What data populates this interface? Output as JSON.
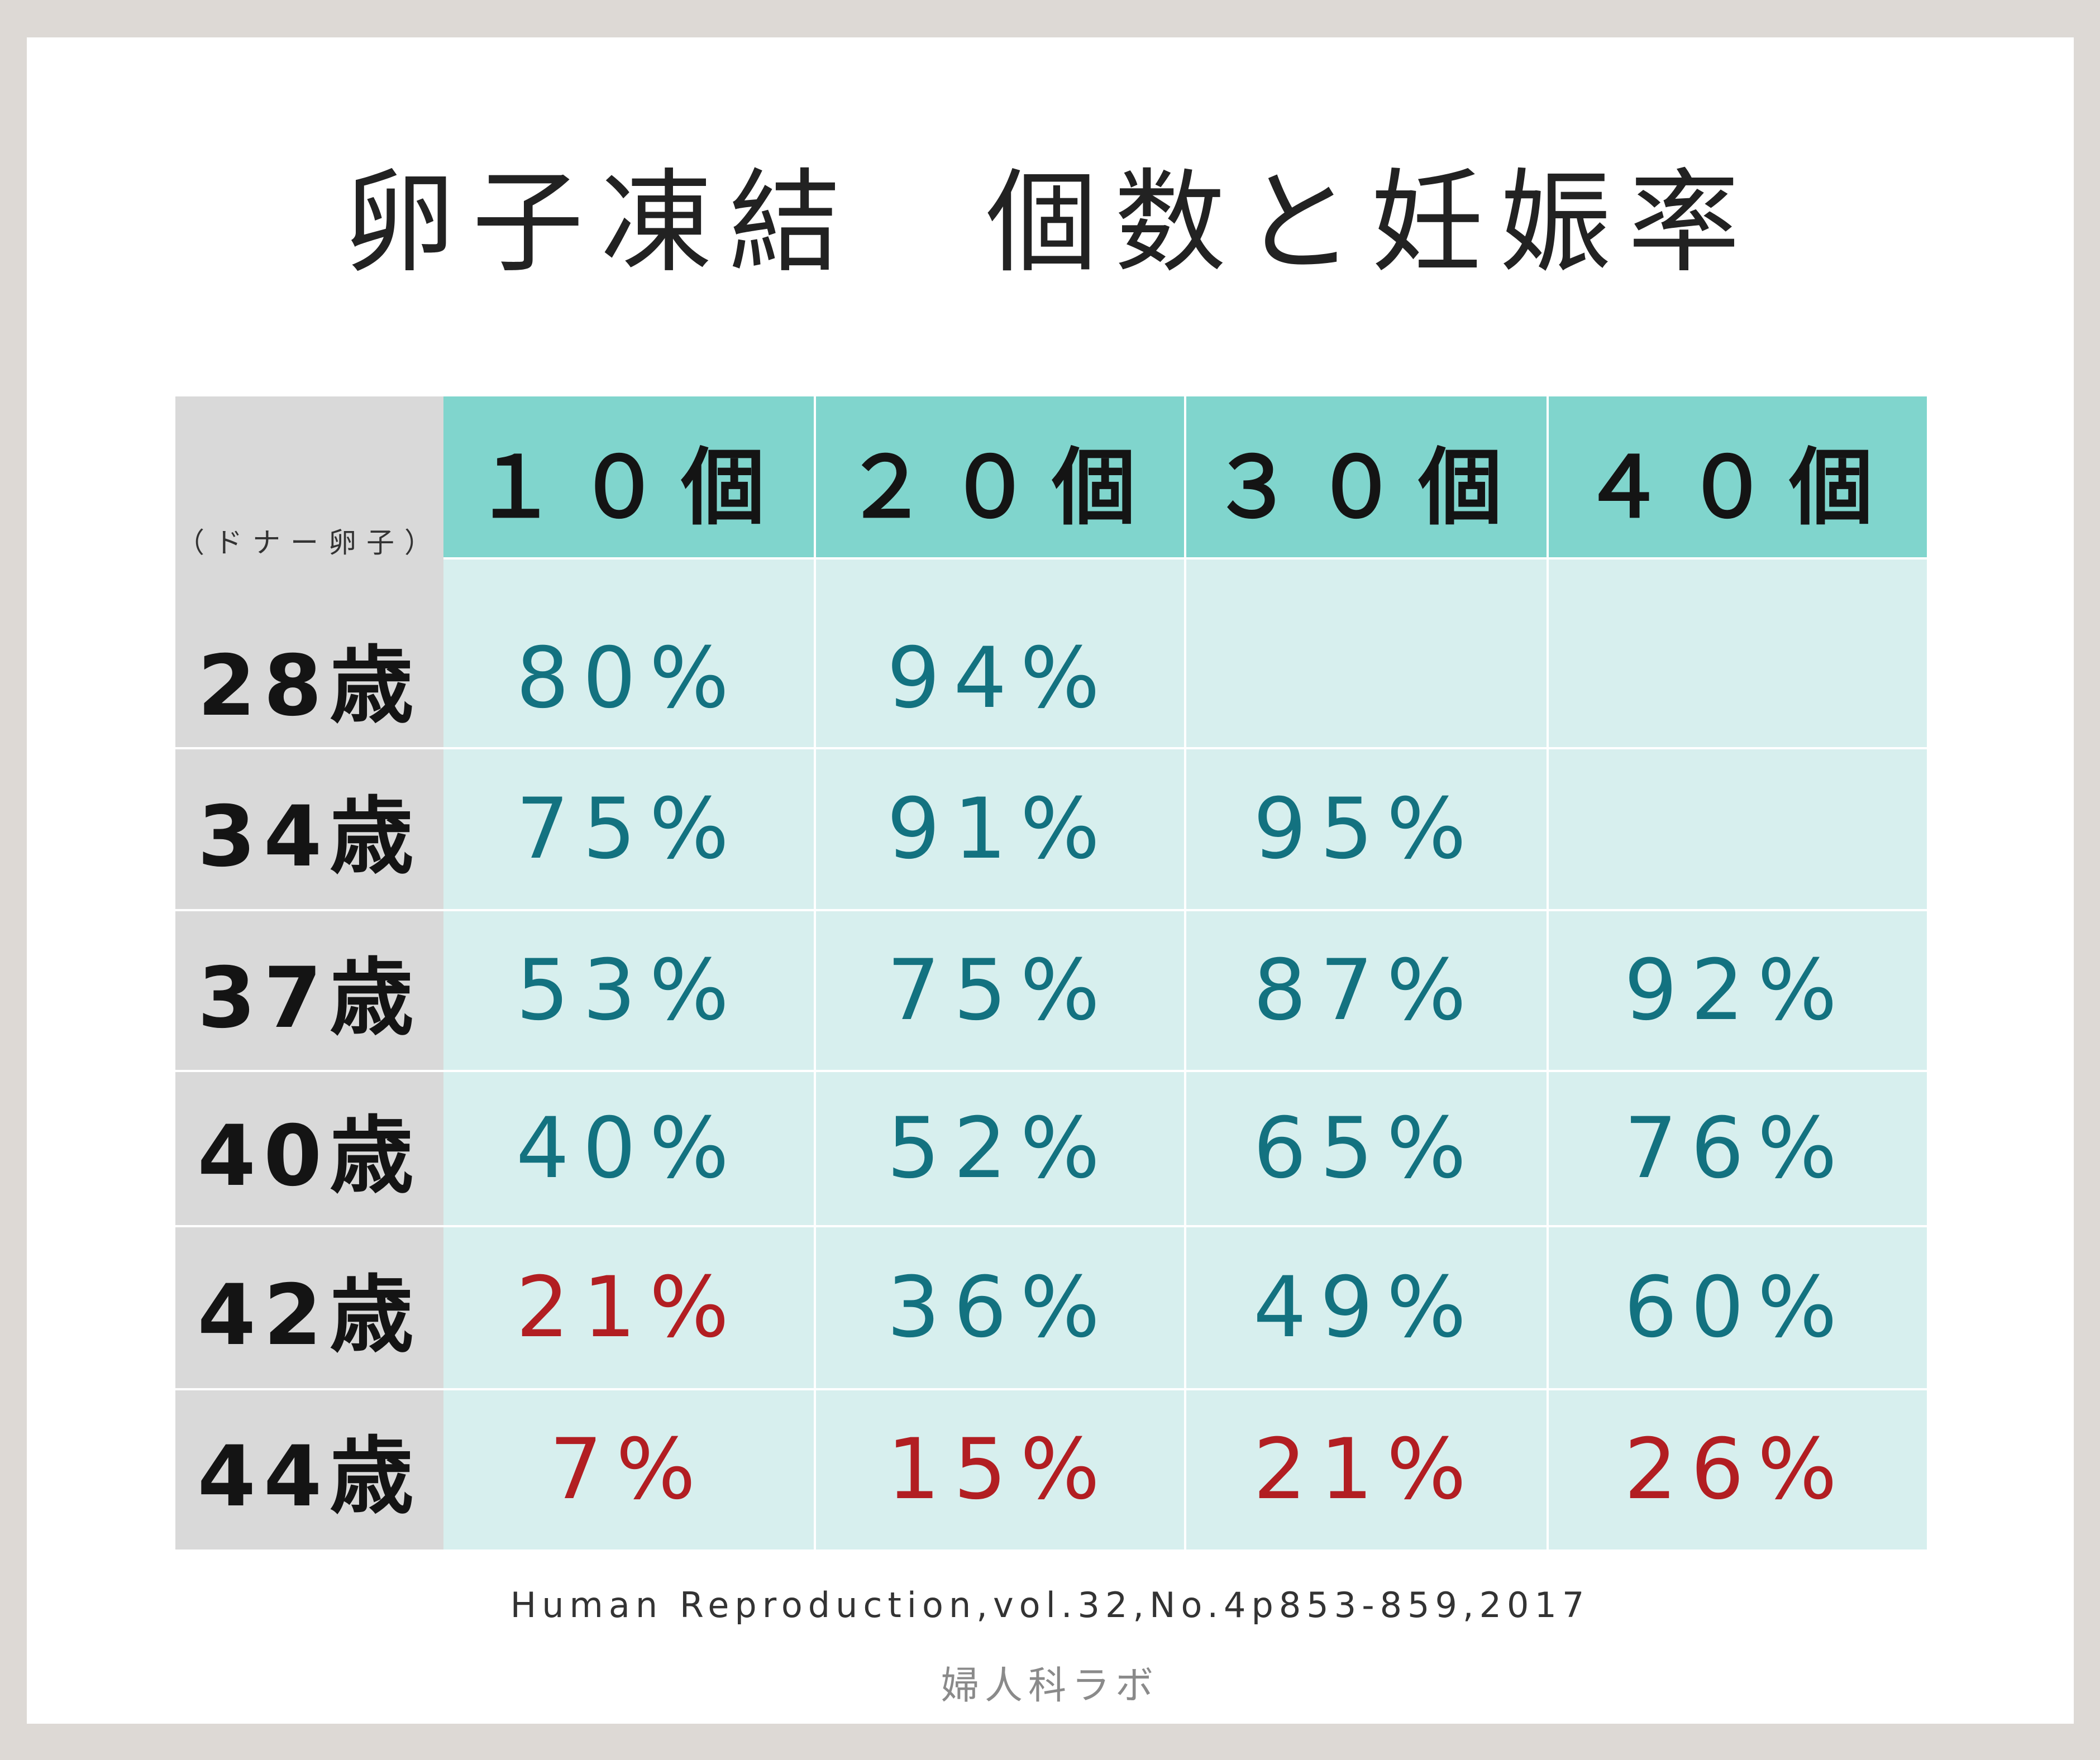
{
  "title": "卵子凍結　個数と妊娠率",
  "chart_data": {
    "type": "table",
    "row_header_note": "（ドナー卵子）",
    "columns": [
      "１０個",
      "２０個",
      "３０個",
      "４０個"
    ],
    "rows": [
      {
        "label": "28歳",
        "cells": [
          "80%",
          "94%",
          "",
          ""
        ]
      },
      {
        "label": "34歳",
        "cells": [
          "75%",
          "91%",
          "95%",
          ""
        ]
      },
      {
        "label": "37歳",
        "cells": [
          "53%",
          "75%",
          "87%",
          "92%"
        ]
      },
      {
        "label": "40歳",
        "cells": [
          "40%",
          "52%",
          "65%",
          "76%"
        ]
      },
      {
        "label": "42歳",
        "cells": [
          "21%",
          "36%",
          "49%",
          "60%"
        ]
      },
      {
        "label": "44歳",
        "cells": [
          "7%",
          "15%",
          "21%",
          "26%"
        ]
      }
    ],
    "values": [
      [
        80,
        94,
        null,
        null
      ],
      [
        75,
        91,
        95,
        null
      ],
      [
        53,
        75,
        87,
        92
      ],
      [
        40,
        52,
        65,
        76
      ],
      [
        21,
        36,
        49,
        60
      ],
      [
        7,
        15,
        21,
        26
      ]
    ],
    "highlight_threshold": 30,
    "colors": {
      "normal": "#137280",
      "low": "#b21e22"
    }
  },
  "citation": "Human Reproduction,vol.32,No.4p853-859,2017",
  "brand": "婦人科ラボ"
}
